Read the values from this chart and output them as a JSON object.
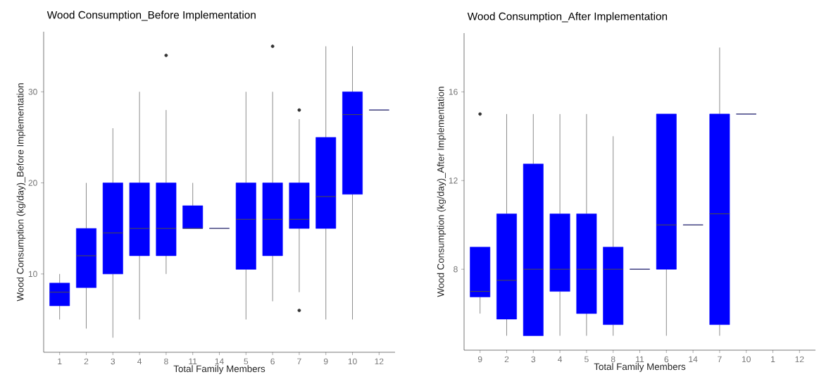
{
  "chart_data": [
    {
      "type": "box",
      "title": "Wood Consumption_Before Implementation",
      "xlabel": "Total Family Members",
      "ylabel": "Wood Consumption (kg/day)_Before Implementation",
      "color": "#0000ff",
      "ylim": [
        1.4,
        36.6
      ],
      "yticks": [
        10,
        20,
        30
      ],
      "categories": [
        "1",
        "2",
        "3",
        "4",
        "8",
        "11",
        "14",
        "5",
        "6",
        "7",
        "9",
        "10",
        "12"
      ],
      "boxes": [
        {
          "low": 5,
          "q1": 6.5,
          "median": 8,
          "q3": 9,
          "high": 10
        },
        {
          "low": 4,
          "q1": 8.5,
          "median": 12,
          "q3": 15,
          "high": 20
        },
        {
          "low": 3,
          "q1": 10,
          "median": 14.5,
          "q3": 20,
          "high": 26
        },
        {
          "low": 5,
          "q1": 12,
          "median": 15,
          "q3": 20,
          "high": 30
        },
        {
          "low": 10,
          "q1": 12,
          "median": 15,
          "q3": 20,
          "high": 28,
          "outliers": [
            34
          ]
        },
        {
          "low": 15,
          "q1": 15,
          "median": 15,
          "q3": 17.5,
          "high": 20
        },
        {
          "low": 15,
          "q1": 15,
          "median": 15,
          "q3": 15,
          "high": 15
        },
        {
          "low": 5,
          "q1": 10.5,
          "median": 16,
          "q3": 20,
          "high": 30
        },
        {
          "low": 7,
          "q1": 12,
          "median": 16,
          "q3": 20,
          "high": 30,
          "outliers": [
            35
          ]
        },
        {
          "low": 8,
          "q1": 15,
          "median": 16,
          "q3": 20,
          "high": 27,
          "outliers": [
            28,
            6
          ]
        },
        {
          "low": 5,
          "q1": 15,
          "median": 18.5,
          "q3": 25,
          "high": 35
        },
        {
          "low": 5,
          "q1": 18.75,
          "median": 27.5,
          "q3": 30,
          "high": 35
        },
        {
          "low": 28,
          "q1": 28,
          "median": 28,
          "q3": 28,
          "high": 28
        }
      ]
    },
    {
      "type": "box",
      "title": "Wood Consumption_After Implementation",
      "xlabel": "Total Family Members",
      "ylabel": "Wood Consumption (kg/day)_After Implementation",
      "color": "#0000ff",
      "ylim": [
        4.35,
        18.65
      ],
      "yticks": [
        8,
        12,
        16
      ],
      "categories": [
        "9",
        "2",
        "3",
        "4",
        "5",
        "8",
        "11",
        "6",
        "14",
        "7",
        "10",
        "1",
        "12"
      ],
      "boxes": [
        {
          "low": 6,
          "q1": 6.75,
          "median": 7,
          "q3": 9,
          "high": 9,
          "outliers": [
            15
          ]
        },
        {
          "low": 5,
          "q1": 5.75,
          "median": 7.5,
          "q3": 10.5,
          "high": 15
        },
        {
          "low": 5,
          "q1": 5,
          "median": 8,
          "q3": 12.75,
          "high": 15
        },
        {
          "low": 5,
          "q1": 7,
          "median": 8,
          "q3": 10.5,
          "high": 15
        },
        {
          "low": 5,
          "q1": 6,
          "median": 8,
          "q3": 10.5,
          "high": 15
        },
        {
          "low": 5,
          "q1": 5.5,
          "median": 8,
          "q3": 9,
          "high": 14
        },
        {
          "low": 8,
          "q1": 8,
          "median": 8,
          "q3": 8,
          "high": 8
        },
        {
          "low": 5,
          "q1": 8,
          "median": 10,
          "q3": 15,
          "high": 15
        },
        {
          "low": 10,
          "q1": 10,
          "median": 10,
          "q3": 10,
          "high": 10
        },
        {
          "low": 5,
          "q1": 5.5,
          "median": 10.5,
          "q3": 15,
          "high": 18
        },
        {
          "low": 15,
          "q1": 15,
          "median": 15,
          "q3": 15,
          "high": 15
        },
        null,
        null
      ]
    }
  ]
}
